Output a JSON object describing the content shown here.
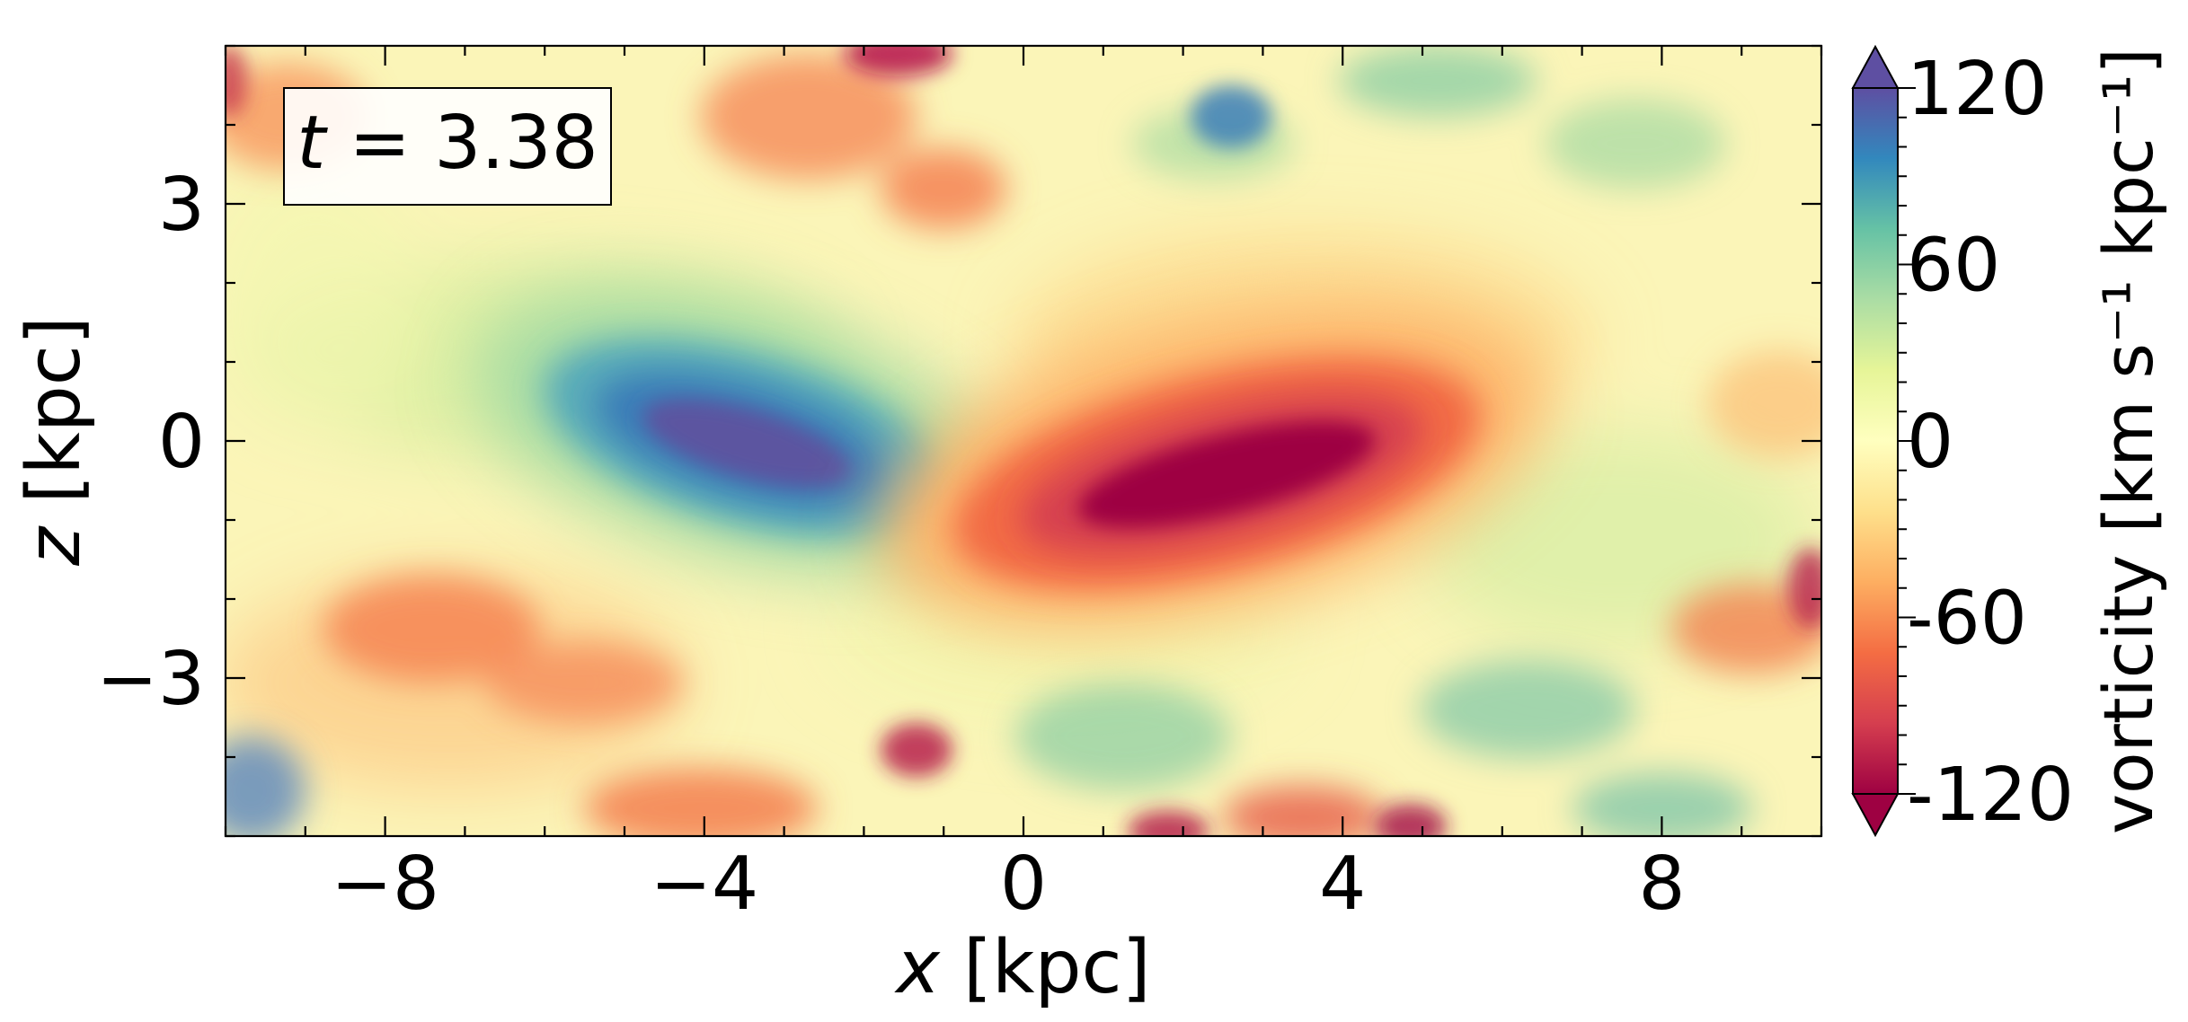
{
  "chart_data": {
    "type": "heatmap",
    "quantity": "vorticity",
    "time_label": {
      "var": "t",
      "eq": " = ",
      "value": "3.38"
    },
    "xlabel": {
      "var": "x",
      "unit": " [kpc]"
    },
    "ylabel": {
      "var": "z",
      "unit": " [kpc]"
    },
    "xlim": [
      -10,
      10
    ],
    "ylim": [
      -5,
      5
    ],
    "x_ticks": [
      -8,
      -4,
      0,
      4,
      8
    ],
    "x_tick_labels": [
      "−8",
      "−4",
      "0",
      "4",
      "8"
    ],
    "y_ticks": [
      -3,
      0,
      3
    ],
    "y_tick_labels": [
      "−3",
      "0",
      "3"
    ],
    "colorbar": {
      "label": "vorticity [km s⁻¹ kpc⁻¹]",
      "range": [
        -120,
        120
      ],
      "extend": "both",
      "cmap": "Spectral",
      "ticks": [
        120,
        60,
        0,
        -60,
        -120
      ],
      "tick_labels": [
        "120",
        "60",
        "0",
        "-60",
        "-120"
      ]
    },
    "features": [
      {
        "name": "positive-vorticity-lobe",
        "x": -3.6,
        "z": -0.3,
        "sign": "+",
        "peak": 120
      },
      {
        "name": "negative-vorticity-lobe",
        "x": 3.0,
        "z": -0.7,
        "sign": "-",
        "peak": -120
      }
    ],
    "grid": false
  }
}
